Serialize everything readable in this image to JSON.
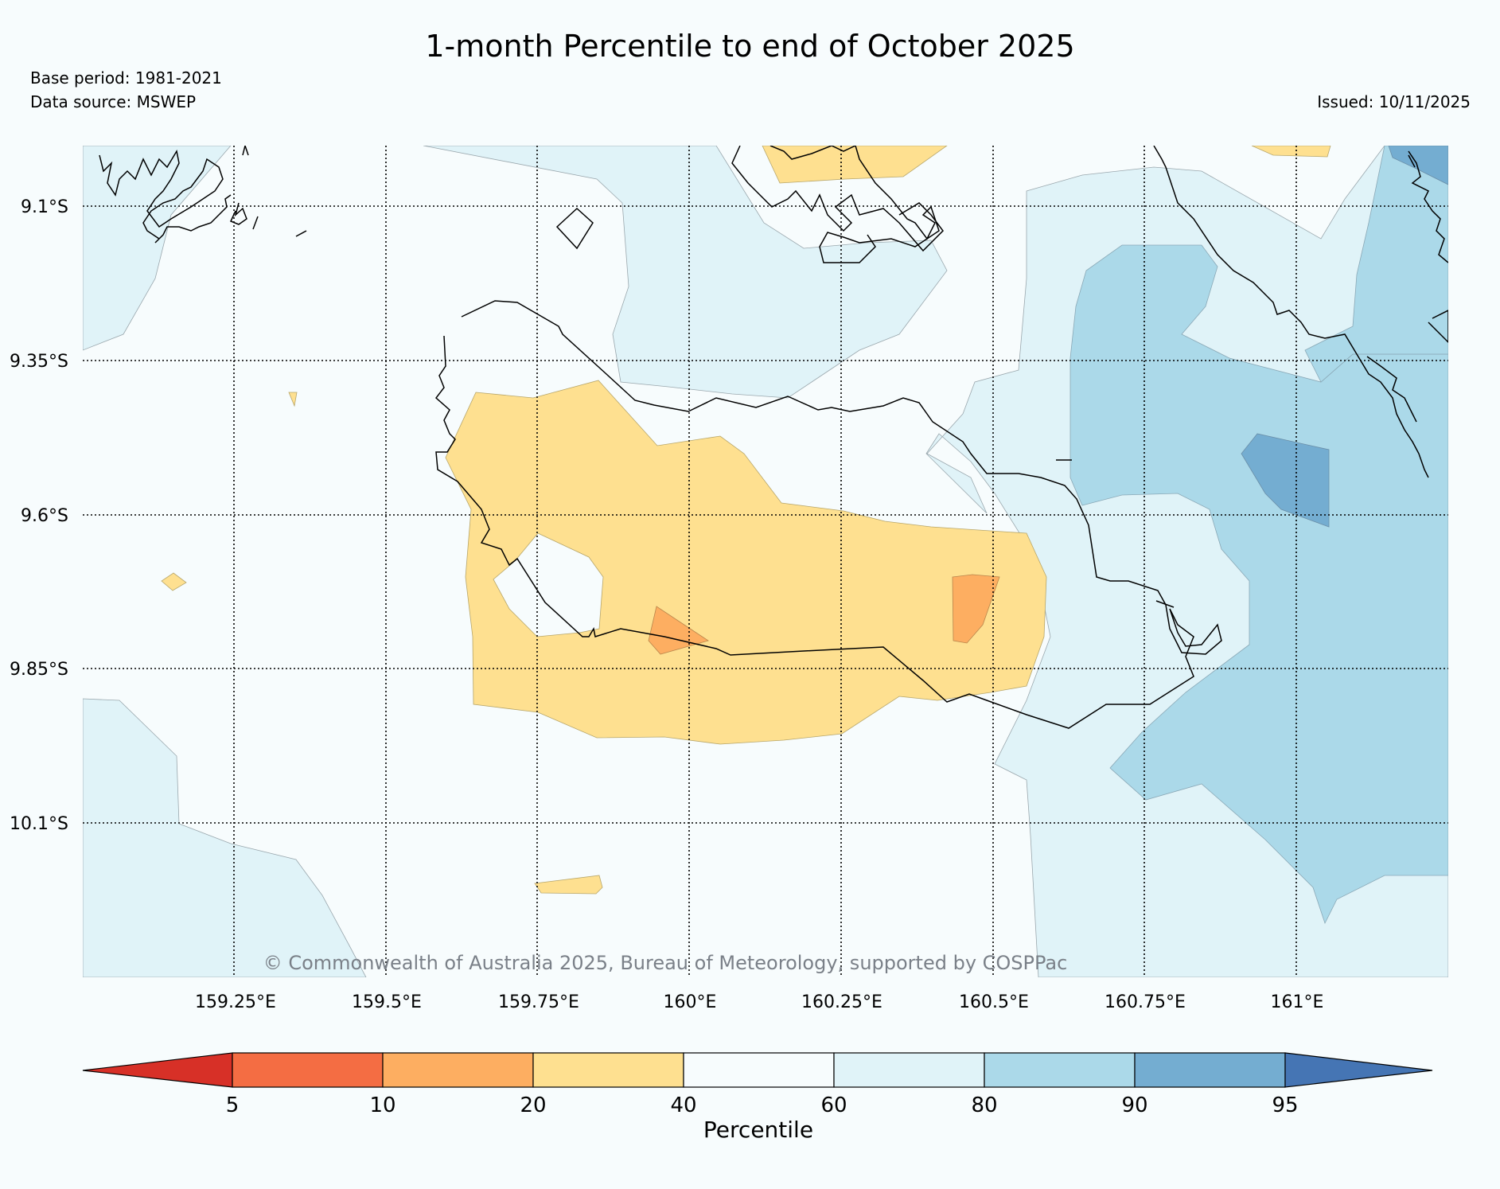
{
  "header": {
    "title": "1-month Percentile to end of October 2025",
    "base_period": "Base period: 1981-2021",
    "data_source": "Data source: MSWEP",
    "issued": "Issued: 10/11/2025"
  },
  "map": {
    "latitude_labels": [
      "9.1°S",
      "9.35°S",
      "9.6°S",
      "9.85°S",
      "10.1°S"
    ],
    "longitude_labels": [
      "159.25°E",
      "159.5°E",
      "159.75°E",
      "160°E",
      "160.25°E",
      "160.5°E",
      "160.75°E",
      "161°E"
    ],
    "copyright": "© Commonwealth of Australia 2025, Bureau of Meteorology, supported by COSPPac"
  },
  "colorbar": {
    "label": "Percentile",
    "ticks": [
      "5",
      "10",
      "20",
      "40",
      "60",
      "80",
      "90",
      "95"
    ],
    "colors": {
      "below_5": "#d73027",
      "p5_10": "#f46d43",
      "p10_20": "#fdae61",
      "p20_40": "#fee090",
      "p40_60": "#f7fcfd",
      "p60_80": "#e0f3f8",
      "p80_90": "#abd9e9",
      "p90_95": "#74add1",
      "above_95": "#4575b4"
    }
  }
}
